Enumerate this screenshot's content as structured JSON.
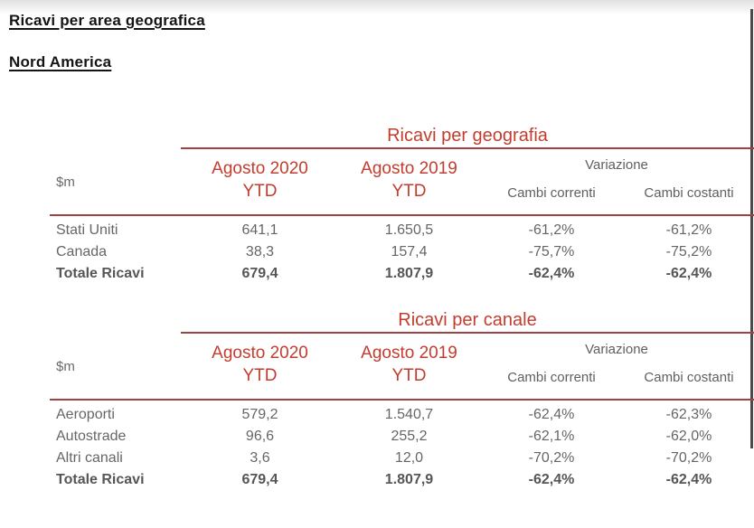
{
  "page": {
    "title": "Ricavi per area geografica",
    "subtitle": "Nord America"
  },
  "colors": {
    "accent_red_text": "#c23d2e",
    "rule_red_line": "#9e4341",
    "body_gray_text": "#666666",
    "heading_black_text": "#141414"
  },
  "tables": [
    {
      "title": "Ricavi per geografia",
      "unit_label": "$m",
      "columns": {
        "col_2020_line1": "Agosto 2020",
        "col_2020_line2": "YTD",
        "col_2019_line1": "Agosto 2019",
        "col_2019_line2": "YTD",
        "variation_group": "Variazione",
        "current_fx": "Cambi correnti",
        "constant_fx": "Cambi costanti"
      },
      "rows": [
        {
          "label": "Stati Uniti",
          "ytd_2020": "641,1",
          "ytd_2019": "1.650,5",
          "var_current": "-61,2%",
          "var_constant": "-61,2%"
        },
        {
          "label": "Canada",
          "ytd_2020": "38,3",
          "ytd_2019": "157,4",
          "var_current": "-75,7%",
          "var_constant": "-75,2%"
        },
        {
          "label": "Totale Ricavi",
          "ytd_2020": "679,4",
          "ytd_2019": "1.807,9",
          "var_current": "-62,4%",
          "var_constant": "-62,4%"
        }
      ]
    },
    {
      "title": "Ricavi per canale",
      "unit_label": "$m",
      "columns": {
        "col_2020_line1": "Agosto 2020",
        "col_2020_line2": "YTD",
        "col_2019_line1": "Agosto 2019",
        "col_2019_line2": "YTD",
        "variation_group": "Variazione",
        "current_fx": "Cambi correnti",
        "constant_fx": "Cambi costanti"
      },
      "rows": [
        {
          "label": "Aeroporti",
          "ytd_2020": "579,2",
          "ytd_2019": "1.540,7",
          "var_current": "-62,4%",
          "var_constant": "-62,3%"
        },
        {
          "label": "Autostrade",
          "ytd_2020": "96,6",
          "ytd_2019": "255,2",
          "var_current": "-62,1%",
          "var_constant": "-62,0%"
        },
        {
          "label": "Altri canali",
          "ytd_2020": "3,6",
          "ytd_2019": "12,0",
          "var_current": "-70,2%",
          "var_constant": "-70,2%"
        },
        {
          "label": "Totale Ricavi",
          "ytd_2020": "679,4",
          "ytd_2019": "1.807,9",
          "var_current": "-62,4%",
          "var_constant": "-62,4%"
        }
      ]
    }
  ]
}
